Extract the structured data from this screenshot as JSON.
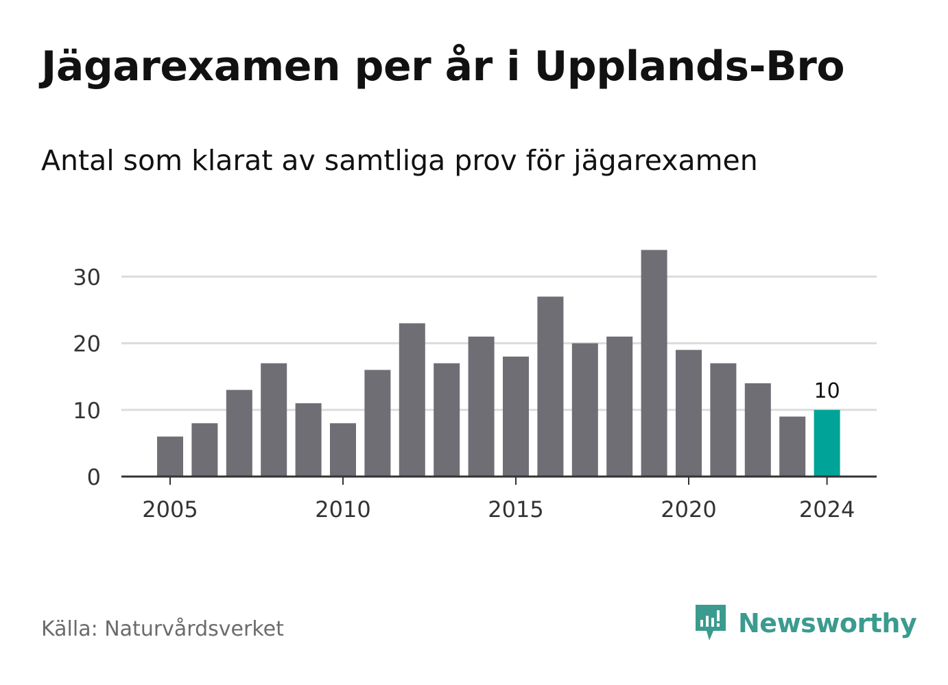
{
  "header": {
    "title": "Jägarexamen per år i Upplands-Bro",
    "subtitle": "Antal som klarat av samtliga prov för jägarexamen"
  },
  "footer": {
    "source": "Källa: Naturvårdsverket",
    "brand": "Newsworthy"
  },
  "colors": {
    "bar": "#6f6e75",
    "highlight": "#00a398",
    "grid": "#dcdcdc",
    "axis": "#333333",
    "brand": "#3a9b8e"
  },
  "chart_data": {
    "type": "bar",
    "x": [
      2005,
      2006,
      2007,
      2008,
      2009,
      2010,
      2011,
      2012,
      2013,
      2014,
      2015,
      2016,
      2017,
      2018,
      2019,
      2020,
      2021,
      2022,
      2023,
      2024
    ],
    "values": [
      6,
      8,
      13,
      17,
      11,
      8,
      16,
      23,
      17,
      21,
      18,
      27,
      20,
      21,
      34,
      19,
      17,
      14,
      9,
      10
    ],
    "xticks": [
      2005,
      2010,
      2015,
      2020,
      2024
    ],
    "yticks": [
      0,
      10,
      20,
      30
    ],
    "ylim": [
      0,
      30
    ],
    "highlight_x": 2024,
    "highlight_label": "10",
    "grid": true,
    "xlabel": "",
    "ylabel": ""
  }
}
